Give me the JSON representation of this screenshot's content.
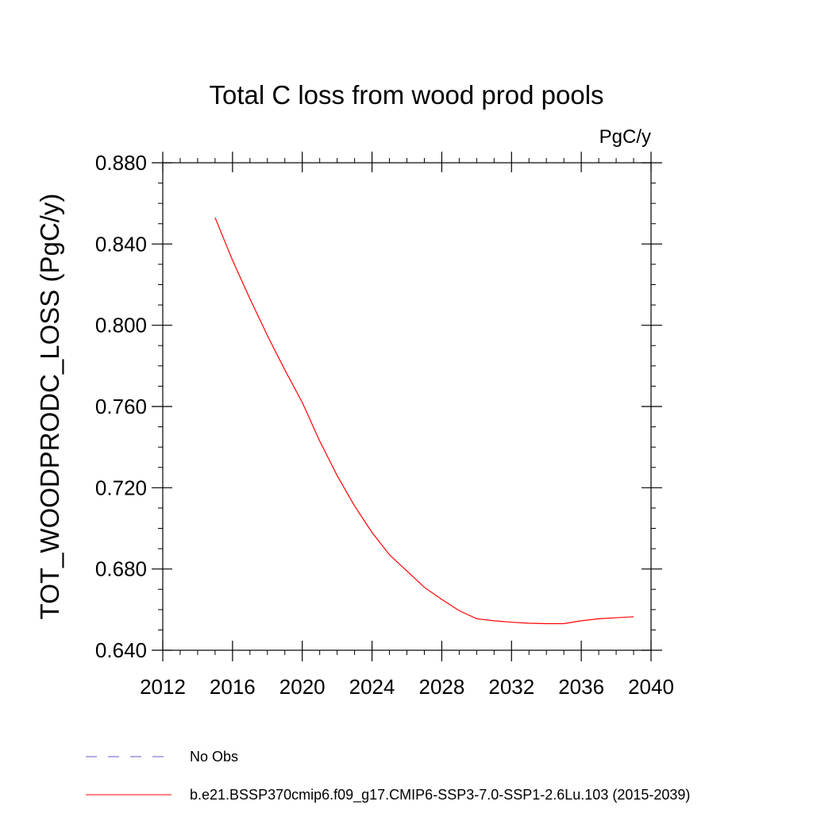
{
  "chart_data": {
    "type": "line",
    "title": "Total C loss from wood prod pools",
    "units": "PgC/y",
    "xlabel": "",
    "ylabel": "TOT_WOODPRODC_LOSS  (PgC/y)",
    "xlim": [
      2012,
      2040
    ],
    "ylim": [
      0.64,
      0.88
    ],
    "xticks": [
      2012,
      2016,
      2020,
      2024,
      2028,
      2032,
      2036,
      2040
    ],
    "xtick_labels": [
      "2012",
      "2016",
      "2020",
      "2024",
      "2028",
      "2032",
      "2036",
      "2040"
    ],
    "yticks": [
      0.64,
      0.68,
      0.72,
      0.76,
      0.8,
      0.84,
      0.88
    ],
    "ytick_labels": [
      "0.640",
      "0.680",
      "0.720",
      "0.760",
      "0.800",
      "0.840",
      "0.880"
    ],
    "grid": false,
    "legend_position": "bottom",
    "legend": [
      {
        "label": "No Obs",
        "color": "#6a5acd",
        "style": "dashed"
      },
      {
        "label": "b.e21.BSSP370cmip6.f09_g17.CMIP6-SSP3-7.0-SSP1-2.6Lu.103 (2015-2039)",
        "color": "#ff0000",
        "style": "solid"
      }
    ],
    "series": [
      {
        "name": "b.e21.BSSP370cmip6.f09_g17.CMIP6-SSP3-7.0-SSP1-2.6Lu.103 (2015-2039)",
        "color": "#ff0000",
        "x": [
          2015,
          2016,
          2017,
          2018,
          2019,
          2020,
          2021,
          2022,
          2023,
          2024,
          2025,
          2026,
          2027,
          2028,
          2029,
          2030,
          2031,
          2032,
          2033,
          2034,
          2035,
          2036,
          2037,
          2038,
          2039
        ],
        "values": [
          0.853,
          0.832,
          0.813,
          0.795,
          0.778,
          0.762,
          0.743,
          0.726,
          0.711,
          0.698,
          0.687,
          0.679,
          0.671,
          0.665,
          0.6595,
          0.6555,
          0.6545,
          0.6538,
          0.6533,
          0.6531,
          0.6531,
          0.6545,
          0.6555,
          0.656,
          0.6565
        ]
      }
    ]
  }
}
